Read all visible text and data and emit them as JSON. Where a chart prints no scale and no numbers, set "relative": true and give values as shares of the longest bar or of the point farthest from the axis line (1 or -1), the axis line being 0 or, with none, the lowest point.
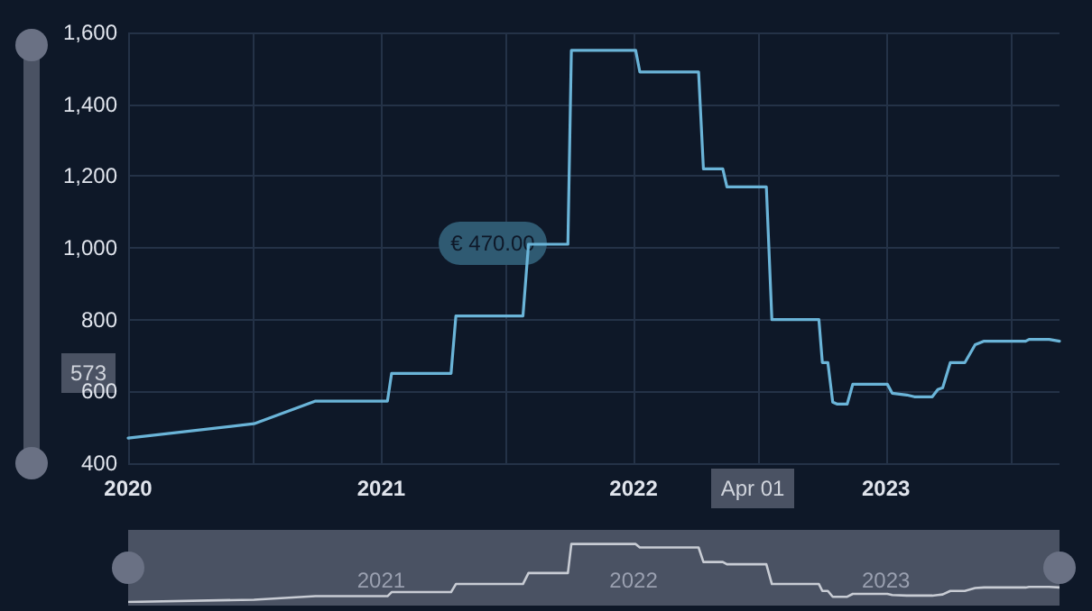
{
  "chart_data": [
    {
      "type": "line",
      "x": [
        "2020-01-01",
        "2020-07-01",
        "2020-09-28",
        "2021-01-10",
        "2021-01-16",
        "2021-04-12",
        "2021-04-19",
        "2021-07-25",
        "2021-08-02",
        "2021-09-28",
        "2021-10-03",
        "2022-01-04",
        "2022-01-10",
        "2022-04-05",
        "2022-04-12",
        "2022-05-10",
        "2022-05-16",
        "2022-07-12",
        "2022-07-20",
        "2022-09-26",
        "2022-10-01",
        "2022-10-09",
        "2022-10-16",
        "2022-10-22",
        "2022-11-06",
        "2022-11-14",
        "2023-01-03",
        "2023-01-10",
        "2023-01-31",
        "2023-02-11",
        "2023-03-09",
        "2023-03-17",
        "2023-03-24",
        "2023-04-04",
        "2023-04-25",
        "2023-05-10",
        "2023-05-23",
        "2023-07-22",
        "2023-07-27",
        "2023-08-25",
        "2023-09-09"
      ],
      "series": [
        {
          "color": "#6ab4d8",
          "values": [
            470,
            510,
            573,
            573,
            650,
            650,
            810,
            810,
            1010,
            1010,
            1550,
            1550,
            1490,
            1490,
            1220,
            1220,
            1170,
            1170,
            800,
            800,
            680,
            680,
            570,
            565,
            565,
            620,
            620,
            595,
            590,
            585,
            585,
            605,
            610,
            680,
            680,
            730,
            740,
            740,
            745,
            745,
            740
          ]
        }
      ],
      "xlim": [
        "2020-01-01",
        "2023-09-09"
      ],
      "xticks": [
        {
          "value": "2020-01-01",
          "label": "2020"
        },
        {
          "value": "2020-07-01",
          "label": null
        },
        {
          "value": "2021-01-01",
          "label": "2021"
        },
        {
          "value": "2021-07-01",
          "label": null
        },
        {
          "value": "2022-01-01",
          "label": "2022"
        },
        {
          "value": "2022-07-01",
          "label": null
        },
        {
          "value": "2023-01-01",
          "label": "2023"
        },
        {
          "value": "2023-07-01",
          "label": null
        }
      ],
      "ylim": [
        400,
        1600
      ],
      "yticks": [
        400,
        {
          "value": 600,
          "label": "600"
        },
        800,
        {
          "value": 1000,
          "label": "1,000"
        },
        {
          "value": 1200,
          "label": "1,200"
        },
        {
          "value": 1400,
          "label": "1,400"
        },
        {
          "value": 1600,
          "label": "1,600"
        }
      ],
      "annotations": [
        "€ 470.00",
        "573",
        "Apr 01"
      ],
      "grid": true,
      "marker": "none",
      "line_style": "solid"
    },
    {
      "type": "line",
      "relative": true,
      "x": [
        "2020-01-01",
        "2020-07-01",
        "2020-09-28",
        "2021-01-10",
        "2021-01-16",
        "2021-04-12",
        "2021-04-19",
        "2021-07-25",
        "2021-08-02",
        "2021-09-28",
        "2021-10-03",
        "2022-01-04",
        "2022-01-10",
        "2022-04-05",
        "2022-04-12",
        "2022-05-10",
        "2022-05-16",
        "2022-07-12",
        "2022-07-20",
        "2022-09-26",
        "2022-10-01",
        "2022-10-09",
        "2022-10-16",
        "2022-10-22",
        "2022-11-06",
        "2022-11-14",
        "2023-01-03",
        "2023-01-10",
        "2023-01-31",
        "2023-02-11",
        "2023-03-09",
        "2023-03-17",
        "2023-03-24",
        "2023-04-04",
        "2023-04-25",
        "2023-05-10",
        "2023-05-23",
        "2023-07-22",
        "2023-07-27",
        "2023-08-25",
        "2023-09-09"
      ],
      "series": [
        {
          "color": "#c8ccd4",
          "values": [
            0,
            0.04,
            0.1,
            0.1,
            0.17,
            0.17,
            0.31,
            0.31,
            0.5,
            0.5,
            1,
            1,
            0.94,
            0.94,
            0.69,
            0.69,
            0.65,
            0.65,
            0.31,
            0.31,
            0.19,
            0.19,
            0.09,
            0.09,
            0.09,
            0.14,
            0.14,
            0.12,
            0.11,
            0.11,
            0.11,
            0.12,
            0.13,
            0.19,
            0.19,
            0.24,
            0.25,
            0.25,
            0.26,
            0.26,
            0.25
          ]
        }
      ],
      "xlim": [
        "2020-01-01",
        "2023-09-09"
      ],
      "xticks": [
        {
          "value": "2021-01-01",
          "label": "2021"
        },
        {
          "value": "2022-01-01",
          "label": "2022"
        },
        {
          "value": "2023-01-01",
          "label": "2023"
        }
      ],
      "tick_labels": "x",
      "marker": "none",
      "line_style": "solid"
    }
  ]
}
